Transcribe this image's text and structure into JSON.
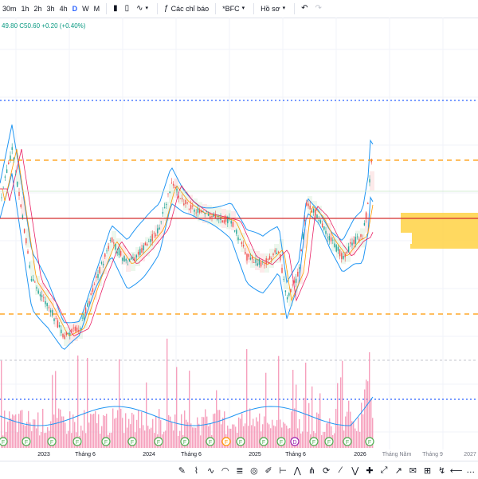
{
  "toolbar": {
    "timeframes": [
      "30m",
      "1h",
      "2h",
      "3h",
      "4h",
      "D",
      "W",
      "M"
    ],
    "active_timeframe": "D",
    "indicators_label": "Các chỉ báo",
    "symbol_label": "*BFC",
    "profile_label": "Hồ sơ"
  },
  "legend": {
    "partial_values": "49.80",
    "close_text": "C50.60",
    "change_text": "+0.20 (+0.40%)",
    "up_color": "#089981"
  },
  "xaxis": {
    "labels": [
      "2023",
      "Tháng 6",
      "2024",
      "Tháng 6",
      "2025",
      "Tháng 6",
      "2026",
      "Tháng Năm",
      "Tháng 9",
      "2027"
    ]
  },
  "event_markers": [
    "F",
    "F",
    "F",
    "F",
    "F",
    "F",
    "F",
    "F",
    "F",
    "F",
    "F",
    "F",
    "F",
    "D",
    "F",
    "F",
    "F",
    "F",
    "F"
  ],
  "colors": {
    "up": "#26a69a",
    "down": "#ef5350",
    "resistance_line": "#ff9800",
    "support_line": "#ff9800",
    "price_line": "#d32f2f",
    "blue_dotted": "#2962ff",
    "bollinger": "#2196f3",
    "volume": "#f48fb1",
    "volume_profile": "#ffd54f",
    "marker_green": "#4caf50",
    "marker_orange": "#ff9800",
    "marker_purple": "#9c27b0"
  },
  "drawing_tools": [
    "brush-icon",
    "path-icon",
    "curve-icon",
    "arc-icon",
    "fib-icon",
    "target-icon",
    "pen-icon",
    "ruler-icon",
    "pattern-icon",
    "pitchfork-icon",
    "cycle-icon",
    "trend-icon",
    "zigzag-icon",
    "crosshair-icon",
    "polyline-icon",
    "arrow-icon",
    "note-icon",
    "position-icon",
    "forecast-icon",
    "back-arrow-icon",
    "more-icon"
  ]
}
